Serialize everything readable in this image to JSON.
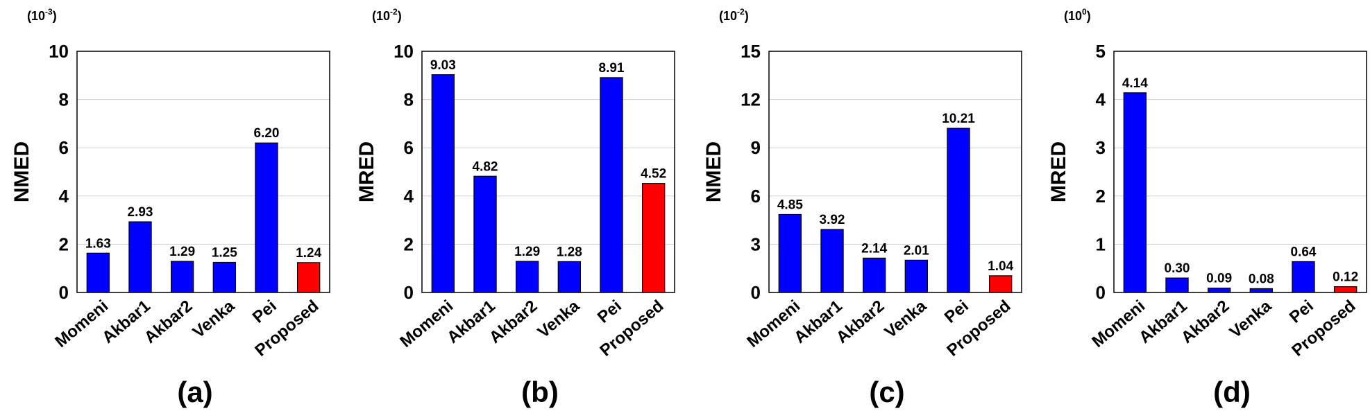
{
  "chart_data": [
    {
      "type": "bar",
      "panel_label": "(a)",
      "scale_label": "(10-3)",
      "scale_base": "(10",
      "scale_exp": "-3",
      "scale_close": ")",
      "ylabel": "NMED",
      "ylim": [
        0,
        10
      ],
      "yticks": [
        0,
        2,
        4,
        6,
        8,
        10
      ],
      "grid": true,
      "categories": [
        "Momeni",
        "Akbar1",
        "Akbar2",
        "Venka",
        "Pei",
        "Proposed"
      ],
      "values": [
        1.63,
        2.93,
        1.29,
        1.25,
        6.2,
        1.24
      ],
      "value_labels": [
        "1.63",
        "2.93",
        "1.29",
        "1.25",
        "6.20",
        "1.24"
      ],
      "colors": [
        "#0000ff",
        "#0000ff",
        "#0000ff",
        "#0000ff",
        "#0000ff",
        "#ff0000"
      ]
    },
    {
      "type": "bar",
      "panel_label": "(b)",
      "scale_label": "(10-2)",
      "scale_base": "(10",
      "scale_exp": "-2",
      "scale_close": ")",
      "ylabel": "MRED",
      "ylim": [
        0,
        10
      ],
      "yticks": [
        0,
        2,
        4,
        6,
        8,
        10
      ],
      "grid": true,
      "categories": [
        "Momeni",
        "Akbar1",
        "Akbar2",
        "Venka",
        "Pei",
        "Proposed"
      ],
      "values": [
        9.03,
        4.82,
        1.29,
        1.28,
        8.91,
        4.52
      ],
      "value_labels": [
        "9.03",
        "4.82",
        "1.29",
        "1.28",
        "8.91",
        "4.52"
      ],
      "colors": [
        "#0000ff",
        "#0000ff",
        "#0000ff",
        "#0000ff",
        "#0000ff",
        "#ff0000"
      ]
    },
    {
      "type": "bar",
      "panel_label": "(c)",
      "scale_label": "(10-2)",
      "scale_base": "(10",
      "scale_exp": "-2",
      "scale_close": ")",
      "ylabel": "NMED",
      "ylim": [
        0,
        15
      ],
      "yticks": [
        0,
        3,
        6,
        9,
        12,
        15
      ],
      "grid": true,
      "categories": [
        "Momeni",
        "Akbar1",
        "Akbar2",
        "Venka",
        "Pei",
        "Proposed"
      ],
      "values": [
        4.85,
        3.92,
        2.14,
        2.01,
        10.21,
        1.04
      ],
      "value_labels": [
        "4.85",
        "3.92",
        "2.14",
        "2.01",
        "10.21",
        "1.04"
      ],
      "colors": [
        "#0000ff",
        "#0000ff",
        "#0000ff",
        "#0000ff",
        "#0000ff",
        "#ff0000"
      ]
    },
    {
      "type": "bar",
      "panel_label": "(d)",
      "scale_label": "(100)",
      "scale_base": "(10",
      "scale_exp": "0",
      "scale_close": ")",
      "ylabel": "MRED",
      "ylim": [
        0,
        5
      ],
      "yticks": [
        0,
        1,
        2,
        3,
        4,
        5
      ],
      "grid": true,
      "categories": [
        "Momeni",
        "Akbar1",
        "Akbar2",
        "Venka",
        "Pei",
        "Proposed"
      ],
      "values": [
        4.14,
        0.3,
        0.09,
        0.08,
        0.64,
        0.12
      ],
      "value_labels": [
        "4.14",
        "0.30",
        "0.09",
        "0.08",
        "0.64",
        "0.12"
      ],
      "colors": [
        "#0000ff",
        "#0000ff",
        "#0000ff",
        "#0000ff",
        "#0000ff",
        "#ff0000"
      ]
    }
  ]
}
